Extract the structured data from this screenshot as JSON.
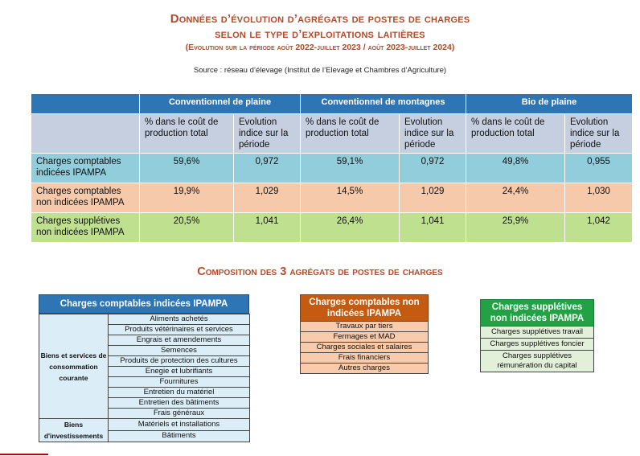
{
  "title": {
    "line1": "Données d’évolution d’agrégats de postes de charges",
    "line2": "selon le type d’exploitations laitières",
    "line3": "(Evolution sur la période août 2022-juillet 2023 / août 2023-juillet 2024)"
  },
  "source": "Source : réseau d’élevage (Institut de l’Elevage et Chambres d’Agriculture)",
  "table": {
    "groups": [
      "Conventionnel de plaine",
      "Conventionnel de montagnes",
      "Bio de plaine"
    ],
    "subheaders": {
      "pct": "% dans le coût de production total",
      "evo": "Evolution indice sur la période"
    },
    "rows": [
      {
        "label": "Charges comptables indicées IPAMPA",
        "values": [
          "59,6%",
          "0,972",
          "59,1%",
          "0,972",
          "49,8%",
          "0,955"
        ]
      },
      {
        "label": "Charges comptables non indicées IPAMPA",
        "values": [
          "19,9%",
          "1,029",
          "14,5%",
          "1,029",
          "24,4%",
          "1,030"
        ]
      },
      {
        "label": "Charges supplétives non indicées IPAMPA",
        "values": [
          "20,5%",
          "1,041",
          "26,4%",
          "1,041",
          "25,9%",
          "1,042"
        ]
      }
    ]
  },
  "composition_title": "Composition des 3 agrégats de postes de charges",
  "ipampa": {
    "header": "Charges comptables indicées IPAMPA",
    "group1": "Biens et services de consommation courante",
    "group1_items": [
      "Aliments achetés",
      "Produits vétérinaires et services",
      "Engrais et amendements",
      "Semences",
      "Produits de protection des cultures",
      "Enegie et lubrifiants",
      "Fournitures",
      "Entretien du matériel",
      "Entretien des bâtiments",
      "Frais généraux"
    ],
    "group2": "Biens d'investissements",
    "group2_items": [
      "Matériels et installations",
      "Bâtiments"
    ]
  },
  "non_ipampa": {
    "header": "Charges comptables non indicées IPAMPA",
    "items": [
      "Travaux par tiers",
      "Fermages et MAD",
      "Charges sociales et salaires",
      "Frais financiers",
      "Autres charges"
    ]
  },
  "suppletives": {
    "header": "Charges supplétives non indicées IPAMPA",
    "items": [
      "Charges supplétives travail",
      "Charges supplétives foncier",
      "Charges supplétives rémunération du capital"
    ]
  },
  "colors": {
    "title": "#b5492a",
    "header_blue": "#2e75b6",
    "row_ipampa": "#92cddc",
    "row_non_ipampa": "#f6c9ab",
    "row_suppletives": "#bfe08f",
    "non_ipampa_header": "#c55a11",
    "suppletives_header": "#22a245"
  }
}
